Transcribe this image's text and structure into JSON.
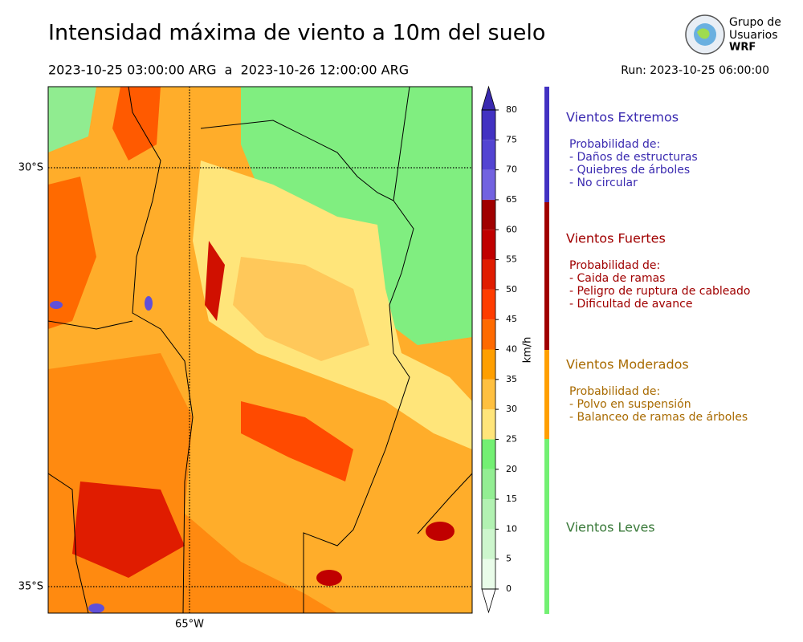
{
  "header": {
    "title": "Intensidad máxima de viento a 10m del suelo",
    "period": "2023-10-25 03:00:00 ARG  a  2023-10-26 12:00:00 ARG",
    "run": "Run: 2023-10-25 06:00:00",
    "logo": [
      "Grupo de",
      "Usuarios",
      "WRF"
    ]
  },
  "map": {
    "lat_labels": [
      "30°S",
      "35°S"
    ],
    "lon_labels": [
      "65°W"
    ]
  },
  "colorbar": {
    "label": "km/h",
    "ticks": [
      0,
      5,
      10,
      15,
      20,
      25,
      30,
      35,
      40,
      45,
      50,
      55,
      60,
      65,
      70,
      75,
      80
    ],
    "colors": [
      "#e9fce9",
      "#cdf6cd",
      "#b2f2b2",
      "#93ee93",
      "#73f073",
      "#ffe57a",
      "#ffc040",
      "#ff9f00",
      "#ff6a00",
      "#ff3c00",
      "#e01c00",
      "#c00000",
      "#a00000",
      "#7262e0",
      "#5344d2",
      "#4232c2"
    ],
    "over_color": "#3a2ab0",
    "under_color": "#ffffff"
  },
  "legend": [
    {
      "title": "Vientos Extremos",
      "color": "#3a2ab0",
      "lines": [
        "Probabilidad de:",
        "- Daños de estructuras",
        "- Quiebres de árboles",
        "- No circular"
      ]
    },
    {
      "title": "Vientos Fuertes",
      "color": "#a00000",
      "lines": [
        "Probabilidad de:",
        "- Caida de ramas",
        "- Peligro de ruptura de cableado",
        "- Dificultad de avance"
      ]
    },
    {
      "title": "Vientos Moderados",
      "color": "#a86a00",
      "lines": [
        "Probabilidad de:",
        "- Polvo en suspensión",
        "- Balanceo de ramas de árboles"
      ]
    },
    {
      "title": "Vientos Leves",
      "color": "#3a7a3a",
      "lines": []
    }
  ]
}
